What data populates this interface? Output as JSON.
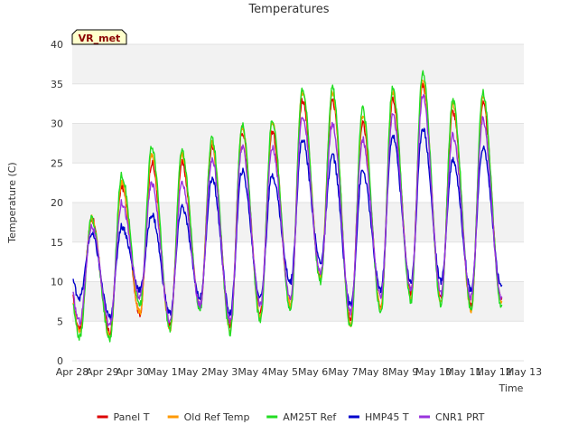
{
  "chart_data": {
    "type": "line",
    "title": "Temperatures",
    "xlabel": "Time",
    "ylabel": "Temperature (C)",
    "badge": "VR_met",
    "ylim": [
      0,
      40
    ],
    "yticks": [
      0,
      5,
      10,
      15,
      20,
      25,
      30,
      35,
      40
    ],
    "xlim": [
      0,
      15
    ],
    "xtick_labels": [
      "Apr 28",
      "Apr 29",
      "Apr 30",
      "May 1",
      "May 2",
      "May 3",
      "May 4",
      "May 5",
      "May 6",
      "May 7",
      "May 8",
      "May 9",
      "May 10",
      "May 11",
      "May 12",
      "May 13"
    ],
    "grid": "horizontal bands",
    "legend_position": "bottom",
    "series": [
      {
        "name": "Panel T",
        "color": "#dd0000",
        "daily_min": [
          4,
          3.5,
          6,
          4.5,
          7,
          4.5,
          6,
          7,
          10.5,
          5,
          7,
          8.5,
          8,
          7,
          8,
          12
        ],
        "daily_max": [
          18,
          22,
          25,
          25,
          27,
          29,
          29,
          33,
          33,
          30,
          33,
          35,
          31.5,
          32.5,
          30
        ]
      },
      {
        "name": "Old Ref Temp",
        "color": "#ff9900",
        "daily_min": [
          3.5,
          3,
          6,
          4,
          7,
          4,
          5.5,
          7,
          10.5,
          4.5,
          6.5,
          8,
          7.5,
          6.5,
          7.5,
          11
        ],
        "daily_max": [
          18,
          22.5,
          26,
          26,
          27.5,
          29.5,
          30,
          34,
          34,
          31,
          34,
          35.5,
          32.5,
          33.5,
          31
        ]
      },
      {
        "name": "AM25T Ref",
        "color": "#22dd22",
        "daily_min": [
          3,
          2.8,
          7,
          4,
          6.5,
          3.5,
          5,
          6.5,
          10,
          4,
          6,
          7.5,
          7,
          6.5,
          7,
          11
        ],
        "daily_max": [
          18,
          23.5,
          27,
          26.5,
          28,
          29.8,
          30.5,
          34.5,
          34.5,
          31.8,
          34.5,
          36.5,
          33,
          34,
          31.5
        ]
      },
      {
        "name": "HMP45 T",
        "color": "#0000cc",
        "daily_min": [
          8,
          5.5,
          9,
          6,
          8,
          6,
          8,
          10,
          12.5,
          7,
          9,
          10,
          10,
          9,
          9.5,
          15.5
        ],
        "daily_max": [
          16,
          17,
          18.5,
          19.5,
          23,
          24,
          23.5,
          28,
          26,
          24,
          28.5,
          29.5,
          25.5,
          27,
          27
        ]
      },
      {
        "name": "CNR1 PRT",
        "color": "#9933dd",
        "daily_min": [
          5,
          4.5,
          8,
          5,
          7,
          5,
          7,
          8,
          11,
          6,
          8,
          9,
          8.5,
          8,
          8,
          12.5
        ],
        "daily_max": [
          17,
          20,
          22.5,
          22.5,
          25.5,
          27,
          27,
          31,
          30,
          28,
          31,
          33.5,
          28.5,
          30.5,
          28.5
        ]
      }
    ]
  }
}
